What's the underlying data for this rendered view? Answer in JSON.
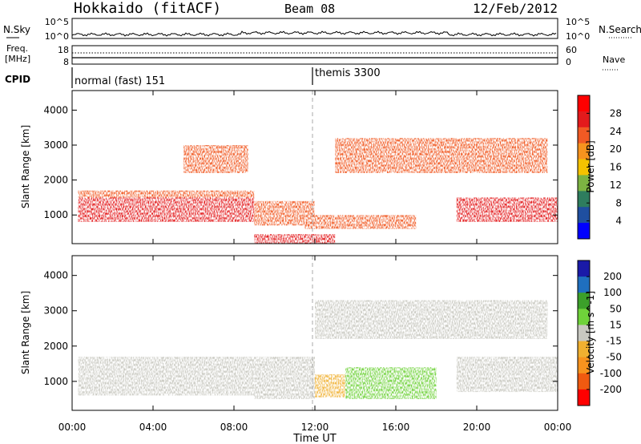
{
  "header": {
    "title": "Hokkaido (fitACF)",
    "beam": "Beam 08",
    "date": "12/Feb/2012"
  },
  "top_panels": {
    "nsky_label": "N.Sky",
    "nsearch_label": "N.Search",
    "noise_ticks": [
      "10^5",
      "10^0"
    ],
    "freq_label": "Freq.",
    "freq_unit": "[MHz]",
    "freq_ticks": [
      "18",
      "8"
    ],
    "nave_label": "Nave",
    "nave_ticks": [
      "60",
      "0"
    ],
    "cpid_label": "CPID",
    "cpid_modes": [
      {
        "name": "normal (fast) 151",
        "start_hour": 0
      },
      {
        "name": "themis 3300",
        "start_hour": 12
      }
    ]
  },
  "x_axis": {
    "label": "Time UT",
    "ticks": [
      "00:00",
      "04:00",
      "08:00",
      "12:00",
      "16:00",
      "20:00",
      "00:00"
    ],
    "range_hours": [
      0,
      24
    ]
  },
  "colors": {
    "power_scale": [
      "#0000ff",
      "#1f4fa0",
      "#2e7d5e",
      "#7cb342",
      "#f5c200",
      "#f7931e",
      "#f15a24",
      "#e31a1c",
      "#ff0000"
    ],
    "velocity_scale": [
      "#ff0000",
      "#f05a10",
      "#f7931e",
      "#f0b030",
      "#c8c8c0",
      "#6fd23a",
      "#3ca02a",
      "#1f6fbf",
      "#1a1aa8"
    ]
  },
  "chart_data": [
    {
      "type": "heatmap",
      "name": "power",
      "ylabel": "Slant Range [km]",
      "ylim": [
        180,
        4560
      ],
      "y_ticks": [
        "1000",
        "2000",
        "3000",
        "4000"
      ],
      "colorbar": {
        "label": "Power [dB]",
        "ticks": [
          "4",
          "8",
          "12",
          "16",
          "20",
          "24",
          "28"
        ]
      },
      "regions": [
        {
          "x": [
            0.3,
            9.0
          ],
          "y": [
            800,
            1500
          ],
          "level": 28
        },
        {
          "x": [
            0.3,
            9.0
          ],
          "y": [
            1500,
            1700
          ],
          "level": 22
        },
        {
          "x": [
            5.5,
            8.7
          ],
          "y": [
            2200,
            3000
          ],
          "level": 22
        },
        {
          "x": [
            9.0,
            12.0
          ],
          "y": [
            700,
            1400
          ],
          "level": 24
        },
        {
          "x": [
            11.5,
            17.0
          ],
          "y": [
            600,
            1000
          ],
          "level": 24
        },
        {
          "x": [
            13.0,
            23.5
          ],
          "y": [
            2200,
            3200
          ],
          "level": 24
        },
        {
          "x": [
            19.0,
            24.0
          ],
          "y": [
            800,
            1500
          ],
          "level": 28
        },
        {
          "x": [
            9.0,
            13.0
          ],
          "y": [
            180,
            450
          ],
          "level": 26
        }
      ]
    },
    {
      "type": "heatmap",
      "name": "velocity",
      "ylabel": "Slant Range [km]",
      "ylim": [
        180,
        4560
      ],
      "y_ticks": [
        "1000",
        "2000",
        "3000",
        "4000"
      ],
      "colorbar": {
        "label": "Velocity [m s^-1]",
        "ticks": [
          "200",
          "100",
          "50",
          "15",
          "-15",
          "-50",
          "-100",
          "-200"
        ]
      },
      "regions": [
        {
          "x": [
            0.3,
            9.0
          ],
          "y": [
            600,
            1700
          ],
          "level": 0
        },
        {
          "x": [
            9.0,
            12.0
          ],
          "y": [
            500,
            1700
          ],
          "level": 0
        },
        {
          "x": [
            12.0,
            14.0
          ],
          "y": [
            550,
            1200
          ],
          "level": -60
        },
        {
          "x": [
            13.5,
            18.0
          ],
          "y": [
            500,
            1400
          ],
          "level": 40
        },
        {
          "x": [
            12.0,
            23.5
          ],
          "y": [
            2200,
            3300
          ],
          "level": 0
        },
        {
          "x": [
            19.0,
            24.0
          ],
          "y": [
            700,
            1700
          ],
          "level": 0
        }
      ]
    }
  ]
}
